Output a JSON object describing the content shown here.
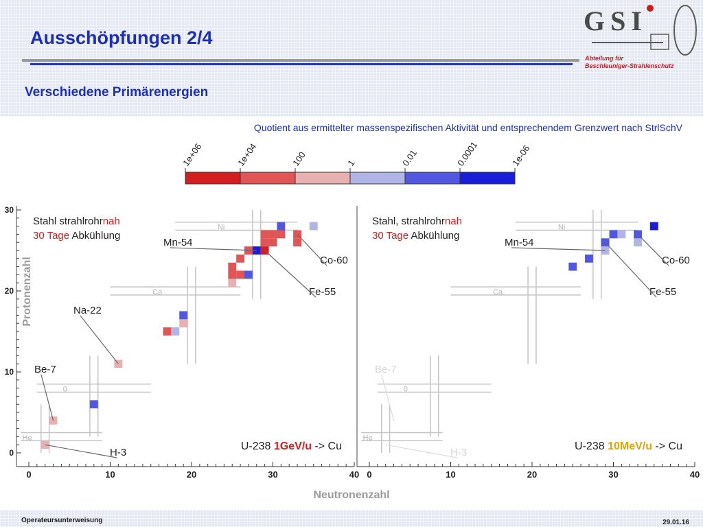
{
  "slide": {
    "title": "Ausschöpfungen 2/4",
    "subtitle": "Verschiedene Primärenergien",
    "footer_left": "Operateursunterweisung",
    "footer_right": "29.01.16",
    "logo_text": "GSI",
    "department": [
      "Abteilung für",
      "Beschleuniger-Strahlenschutz"
    ]
  },
  "colors": {
    "title": "#1d2fb8",
    "header_bg": "#e2e8f3",
    "dept_text": "#b42424"
  },
  "chart_data": {
    "type": "heatmap",
    "colorbar": {
      "title": "Quotient aus ermittelter massenspezifischen Aktivität und entsprechendem Grenzwert nach StrlSchV",
      "ticks": [
        "1e+06",
        "1e+04",
        "100",
        "1",
        "0.01",
        "0.0001",
        "1e-06"
      ],
      "colors": [
        "#d21e1e",
        "#e05555",
        "#e7b1b1",
        "#b1b5e5",
        "#5157de",
        "#1a1ed6"
      ]
    },
    "xlabel": "Neutronenzahl",
    "ylabel": "Protonenzahl",
    "xlim": [
      0,
      40
    ],
    "ylim": [
      0,
      30
    ],
    "x_ticks": [
      0,
      10,
      20,
      30,
      40
    ],
    "y_ticks": [
      0,
      10,
      20,
      30
    ],
    "panels": [
      {
        "name": "Stahl strahlrohr nah, 30 Tage Abkühlung",
        "label_lines": [
          [
            {
              "text": "Stahl strahlrohr",
              "color": "#222222"
            },
            {
              "text": "nah",
              "color": "#d21e1e"
            }
          ],
          [
            {
              "text": "30 Tage",
              "color": "#d21e1e"
            },
            {
              "text": " Abkühlung",
              "color": "#222222"
            }
          ]
        ],
        "beam": [
          {
            "text": "U-238  ",
            "color": "#222222"
          },
          {
            "text": "1GeV/u",
            "color": "#d21e1e"
          },
          {
            "text": "  -> Cu",
            "color": "#222222"
          }
        ],
        "cells": [
          {
            "n": 2,
            "z": 1,
            "level": 2
          },
          {
            "n": 3,
            "z": 4,
            "level": 2
          },
          {
            "n": 8,
            "z": 6,
            "level": 4
          },
          {
            "n": 11,
            "z": 11,
            "level": 2
          },
          {
            "n": 17,
            "z": 15,
            "level": 1
          },
          {
            "n": 18,
            "z": 15,
            "level": 3
          },
          {
            "n": 19,
            "z": 16,
            "level": 2
          },
          {
            "n": 19,
            "z": 17,
            "level": 4
          },
          {
            "n": 25,
            "z": 21,
            "level": 2
          },
          {
            "n": 25,
            "z": 22,
            "level": 1
          },
          {
            "n": 26,
            "z": 22,
            "level": 1
          },
          {
            "n": 27,
            "z": 22,
            "level": 4
          },
          {
            "n": 25,
            "z": 23,
            "level": 1
          },
          {
            "n": 26,
            "z": 24,
            "level": 1
          },
          {
            "n": 27,
            "z": 25,
            "level": 1
          },
          {
            "n": 28,
            "z": 25,
            "level": 5
          },
          {
            "n": 29,
            "z": 25,
            "level": 0
          },
          {
            "n": 29,
            "z": 26,
            "level": 1
          },
          {
            "n": 30,
            "z": 26,
            "level": 1
          },
          {
            "n": 29,
            "z": 27,
            "level": 1
          },
          {
            "n": 30,
            "z": 27,
            "level": 1
          },
          {
            "n": 31,
            "z": 27,
            "level": 1
          },
          {
            "n": 31,
            "z": 28,
            "level": 4
          },
          {
            "n": 33,
            "z": 26,
            "level": 1
          },
          {
            "n": 33,
            "z": 27,
            "level": 1
          },
          {
            "n": 35,
            "z": 28,
            "level": 3
          }
        ],
        "annotations": [
          {
            "text": "Be-7",
            "color": "#222222"
          },
          {
            "text": "Na-22",
            "color": "#222222"
          },
          {
            "text": "H-3",
            "color": "#222222"
          },
          {
            "text": "Mn-54",
            "color": "#222222"
          },
          {
            "text": "Co-60",
            "color": "#222222"
          },
          {
            "text": "Fe-55",
            "color": "#222222"
          }
        ]
      },
      {
        "name": "Stahl, strahlrohr nah, 30 Tage Abkühlung",
        "label_lines": [
          [
            {
              "text": "Stahl, strahlrohr",
              "color": "#222222"
            },
            {
              "text": "nah",
              "color": "#d21e1e"
            }
          ],
          [
            {
              "text": "30 Tage",
              "color": "#d21e1e"
            },
            {
              "text": " Abkühlung",
              "color": "#222222"
            }
          ]
        ],
        "beam": [
          {
            "text": "U-238  ",
            "color": "#222222"
          },
          {
            "text": "10MeV/u",
            "color": "#e2a20c"
          },
          {
            "text": "  -> Cu",
            "color": "#222222"
          }
        ],
        "cells": [
          {
            "n": 25,
            "z": 23,
            "level": 4
          },
          {
            "n": 27,
            "z": 24,
            "level": 4
          },
          {
            "n": 29,
            "z": 25,
            "level": 3
          },
          {
            "n": 29,
            "z": 26,
            "level": 4
          },
          {
            "n": 30,
            "z": 27,
            "level": 4
          },
          {
            "n": 31,
            "z": 27,
            "level": 3
          },
          {
            "n": 33,
            "z": 26,
            "level": 3
          },
          {
            "n": 33,
            "z": 27,
            "level": 4
          },
          {
            "n": 35,
            "z": 28,
            "level": 5
          }
        ],
        "annotations": [
          {
            "text": "Be-7",
            "color": "#d6d6d6"
          },
          {
            "text": "H-3",
            "color": "#d6d6d6"
          },
          {
            "text": "Mn-54",
            "color": "#222222"
          },
          {
            "text": "Co-60",
            "color": "#222222"
          },
          {
            "text": "Fe-55",
            "color": "#222222"
          }
        ]
      }
    ],
    "magic_labels": [
      "He",
      "0",
      "Ca",
      "Ni"
    ]
  }
}
